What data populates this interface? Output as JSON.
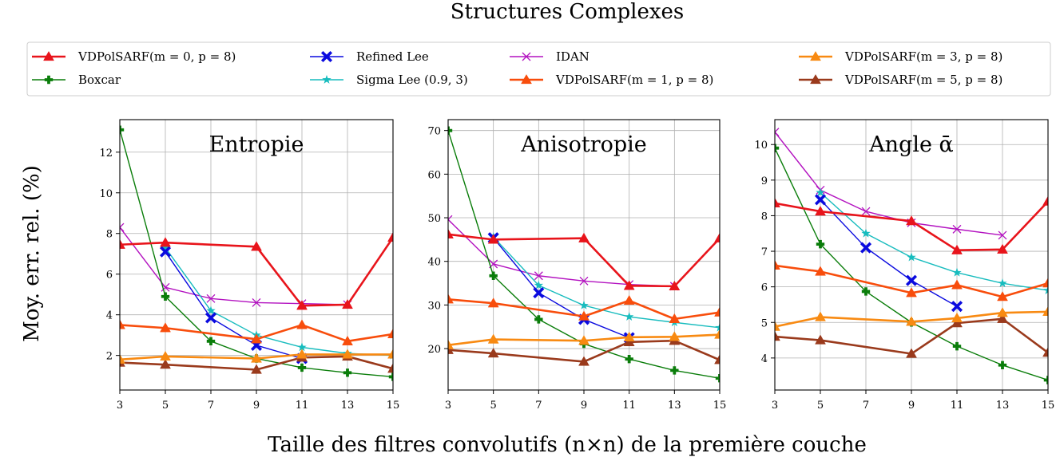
{
  "title": "Structures Complexes",
  "xlabel": "Taille des filtres convolutifs (n×n) de la première couche",
  "ylabel": "Moy. err. rel. (%)",
  "legend": {
    "placement": "top",
    "entries": [
      {
        "label": "VDPolSARF(m = 0, p = 8)",
        "color": "#e8141b",
        "marker": "triangle"
      },
      {
        "label": "Boxcar",
        "color": "#0a7d0a",
        "marker": "plus"
      },
      {
        "label": "Refined Lee",
        "color": "#0a0adf",
        "marker": "x-filled"
      },
      {
        "label": "Sigma Lee (0.9, 3)",
        "color": "#17bcbe",
        "marker": "star"
      },
      {
        "label": "IDAN",
        "color": "#b312c0",
        "marker": "x"
      },
      {
        "label": "VDPolSARF(m = 1, p = 8)",
        "color": "#f84d0c",
        "marker": "triangle"
      },
      {
        "label": "VDPolSARF(m = 3, p = 8)",
        "color": "#f88a12",
        "marker": "triangle"
      },
      {
        "label": "VDPolSARF(m = 5, p = 8)",
        "color": "#9a3a1c",
        "marker": "triangle"
      }
    ]
  },
  "chart_data": [
    {
      "type": "line",
      "title": "Entropie",
      "x": [
        3,
        5,
        7,
        9,
        11,
        13,
        15
      ],
      "xlim": [
        3,
        15
      ],
      "ylim": [
        0.3,
        13.6
      ],
      "yticks": [
        2,
        4,
        6,
        8,
        10,
        12
      ],
      "grid": true,
      "series": [
        {
          "name": "VDPolSARF(m = 0, p = 8)",
          "values": [
            7.45,
            7.55,
            null,
            7.35,
            4.45,
            4.5,
            7.8
          ]
        },
        {
          "name": "Boxcar",
          "values": [
            13.1,
            4.9,
            2.7,
            1.85,
            1.4,
            1.15,
            0.95
          ]
        },
        {
          "name": "Refined Lee",
          "values": [
            null,
            7.1,
            3.85,
            2.5,
            1.85,
            null,
            null
          ]
        },
        {
          "name": "Sigma Lee (0.9, 3)",
          "values": [
            null,
            7.3,
            4.2,
            3.0,
            2.4,
            2.1,
            2.0
          ]
        },
        {
          "name": "IDAN",
          "values": [
            8.3,
            5.35,
            4.8,
            4.6,
            4.55,
            4.5,
            null
          ]
        },
        {
          "name": "VDPolSARF(m = 1, p = 8)",
          "values": [
            3.5,
            3.35,
            null,
            2.8,
            3.5,
            2.7,
            3.05
          ]
        },
        {
          "name": "VDPolSARF(m = 3, p = 8)",
          "values": [
            1.8,
            1.95,
            null,
            1.85,
            2.05,
            2.05,
            2.05
          ]
        },
        {
          "name": "VDPolSARF(m = 5, p = 8)",
          "values": [
            1.65,
            1.55,
            null,
            1.3,
            1.9,
            1.95,
            1.35
          ]
        }
      ]
    },
    {
      "type": "line",
      "title": "Anisotropie",
      "x": [
        3,
        5,
        7,
        9,
        11,
        13,
        15
      ],
      "xlim": [
        3,
        15
      ],
      "ylim": [
        10.5,
        72.5
      ],
      "yticks": [
        20,
        30,
        40,
        50,
        60,
        70
      ],
      "grid": true,
      "series": [
        {
          "name": "VDPolSARF(m = 0, p = 8)",
          "values": [
            46.2,
            45.0,
            null,
            45.3,
            34.4,
            34.3,
            45.3
          ]
        },
        {
          "name": "Boxcar",
          "values": [
            70.0,
            36.7,
            26.7,
            21.1,
            17.6,
            15.0,
            13.2
          ]
        },
        {
          "name": "Refined Lee",
          "values": [
            null,
            45.4,
            32.8,
            26.7,
            22.5,
            null,
            null
          ]
        },
        {
          "name": "Sigma Lee (0.9, 3)",
          "values": [
            null,
            45.6,
            34.5,
            29.9,
            27.3,
            26.0,
            24.8
          ]
        },
        {
          "name": "IDAN",
          "values": [
            49.6,
            39.4,
            36.7,
            35.5,
            34.7,
            34.3,
            null
          ]
        },
        {
          "name": "VDPolSARF(m = 1, p = 8)",
          "values": [
            31.3,
            30.4,
            null,
            27.4,
            31.0,
            26.8,
            28.3
          ]
        },
        {
          "name": "VDPolSARF(m = 3, p = 8)",
          "values": [
            20.8,
            22.1,
            null,
            21.8,
            22.6,
            22.7,
            23.2
          ]
        },
        {
          "name": "VDPolSARF(m = 5, p = 8)",
          "values": [
            19.7,
            18.9,
            null,
            17.0,
            21.5,
            21.8,
            17.4
          ]
        }
      ]
    },
    {
      "type": "line",
      "title": "Angle ᾱ",
      "x": [
        3,
        5,
        7,
        9,
        11,
        13,
        15
      ],
      "xlim": [
        3,
        15
      ],
      "ylim": [
        3.1,
        10.7
      ],
      "yticks": [
        4,
        5,
        6,
        7,
        8,
        9,
        10
      ],
      "grid": true,
      "series": [
        {
          "name": "VDPolSARF(m = 0, p = 8)",
          "values": [
            8.35,
            8.12,
            null,
            7.85,
            7.03,
            7.05,
            8.4
          ]
        },
        {
          "name": "Boxcar",
          "values": [
            9.9,
            7.2,
            5.87,
            5.0,
            4.33,
            3.8,
            3.38
          ]
        },
        {
          "name": "Refined Lee",
          "values": [
            null,
            8.45,
            7.1,
            6.18,
            5.45,
            null,
            null
          ]
        },
        {
          "name": "Sigma Lee (0.9, 3)",
          "values": [
            null,
            8.65,
            7.5,
            6.83,
            6.4,
            6.1,
            5.9
          ]
        },
        {
          "name": "IDAN",
          "values": [
            10.35,
            8.72,
            8.12,
            7.8,
            7.62,
            7.45,
            null
          ]
        },
        {
          "name": "VDPolSARF(m = 1, p = 8)",
          "values": [
            6.6,
            6.43,
            null,
            5.83,
            6.05,
            5.72,
            6.1
          ]
        },
        {
          "name": "VDPolSARF(m = 3, p = 8)",
          "values": [
            4.88,
            5.15,
            null,
            5.02,
            5.12,
            5.27,
            5.3
          ]
        },
        {
          "name": "VDPolSARF(m = 5, p = 8)",
          "values": [
            4.6,
            4.5,
            null,
            4.12,
            4.98,
            5.1,
            4.15
          ]
        }
      ]
    }
  ]
}
